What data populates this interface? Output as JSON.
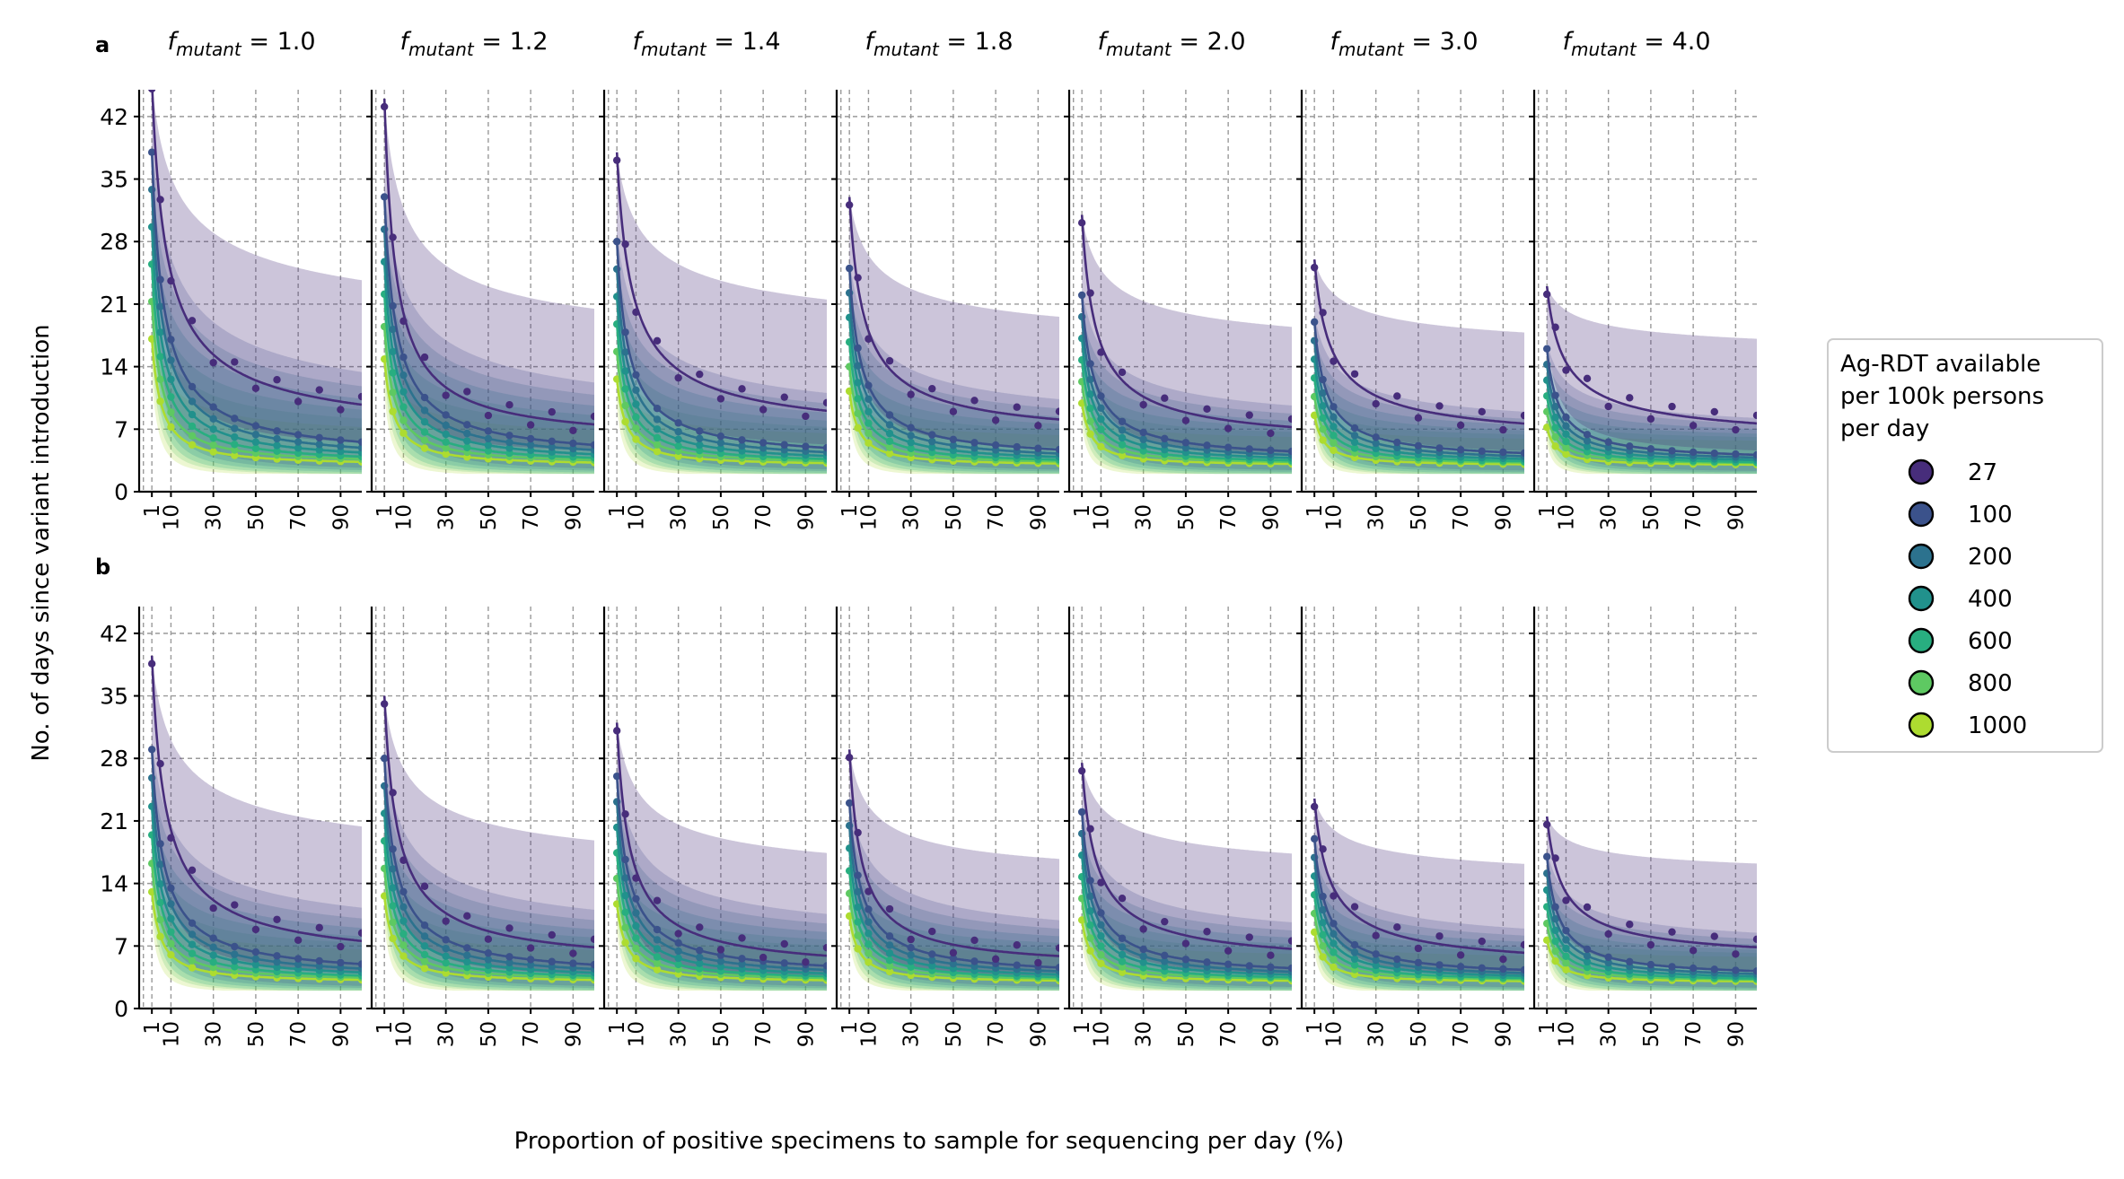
{
  "figure": {
    "ylabel": "No. of days since variant introduction",
    "xlabel": "Proportion of positive specimens to sample for sequencing per day (%)",
    "panel_letters": [
      "a",
      "b"
    ]
  },
  "legend": {
    "title_lines": [
      "Ag-RDT available",
      "per 100k persons",
      "per day"
    ],
    "entries": [
      {
        "label": "27",
        "color": "#472d7b"
      },
      {
        "label": "100",
        "color": "#3b528b"
      },
      {
        "label": "200",
        "color": "#2c728e"
      },
      {
        "label": "400",
        "color": "#21918c"
      },
      {
        "label": "600",
        "color": "#28ae80"
      },
      {
        "label": "800",
        "color": "#5ec962"
      },
      {
        "label": "1000",
        "color": "#addc30"
      }
    ]
  },
  "chart_data": {
    "type": "line",
    "x_ticks": [
      1,
      10,
      30,
      50,
      70,
      90
    ],
    "y_ticks": [
      0,
      7,
      14,
      21,
      28,
      35,
      42
    ],
    "ylim": [
      0,
      45
    ],
    "xlim": [
      -5,
      100
    ],
    "grid": true,
    "legend_position": "right",
    "x": [
      1,
      5,
      10,
      20,
      30,
      40,
      50,
      60,
      70,
      80,
      90,
      100
    ],
    "column_titles": [
      "f_mutant = 1.0",
      "f_mutant = 1.2",
      "f_mutant = 1.4",
      "f_mutant = 1.8",
      "f_mutant = 2.0",
      "f_mutant = 3.0",
      "f_mutant = 4.0"
    ],
    "f_mutant": [
      "1.0",
      "1.2",
      "1.4",
      "1.8",
      "2.0",
      "3.0",
      "4.0"
    ],
    "series_names": [
      "27",
      "100",
      "200",
      "400",
      "600",
      "800",
      "1000"
    ],
    "panels": {
      "a": {
        "series_27": {
          "at_1": [
            46,
            44,
            38,
            33,
            31,
            26,
            23
          ],
          "at_10": [
            24.5,
            20,
            21,
            18,
            16.5,
            15.5,
            14.5
          ],
          "at_100": [
            7.5,
            7.5,
            7.5,
            7.5,
            7,
            7,
            7
          ]
        },
        "at_1_others": [
          38,
          33,
          28,
          25,
          22,
          19,
          16
        ]
      },
      "b": {
        "series_27": {
          "at_1": [
            39.5,
            35,
            32,
            29,
            27.5,
            23.5,
            21.5
          ],
          "at_10": [
            20,
            17.5,
            15.5,
            14,
            15,
            13.5,
            13
          ],
          "at_100": [
            6.5,
            6.5,
            6,
            6.5,
            6.5,
            6,
            7
          ]
        },
        "at_1_others": [
          29,
          28,
          26,
          23,
          22,
          19,
          17
        ]
      }
    }
  }
}
